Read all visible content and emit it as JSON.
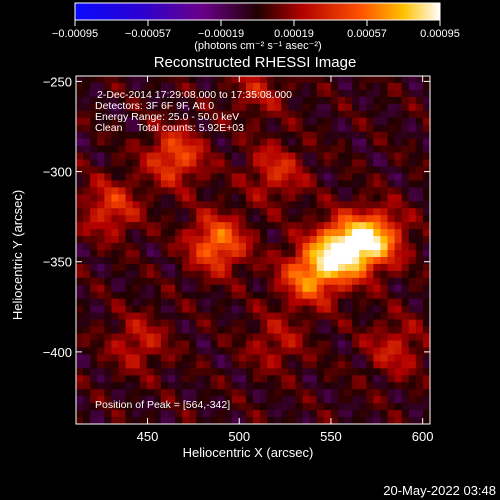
{
  "chart_data": {
    "type": "heatmap",
    "title": "Reconstructed RHESSI Image",
    "xlabel": "Heliocentric X (arcsec)",
    "ylabel": "Heliocentric Y (arcsec)",
    "xlim": [
      411,
      604
    ],
    "ylim": [
      -440,
      -247
    ],
    "x_ticks": [
      450,
      500,
      550,
      600
    ],
    "y_ticks": [
      -250,
      -300,
      -350,
      -400
    ],
    "colorbar": {
      "ticks": [
        "-0.00095",
        "-0.00057",
        "-0.00019",
        "0.00019",
        "0.00057",
        "0.00095"
      ],
      "range": [
        -0.00095,
        0.00095
      ],
      "unit_label": "(photons cm⁻² s⁻¹ asec⁻²)"
    },
    "info_lines": [
      "2-Dec-2014 17:29:08.000 to 17:35:08.000",
      "Detectors: 3F 6F 9F, Att 0",
      "Energy Range: 25.0 - 50.0 keV",
      "Clean     Total counts: 5.92E+03"
    ],
    "peak_label": "Position of Peak = [564,-342]",
    "peak": [
      564,
      -342
    ],
    "sources": [
      {
        "x": 556,
        "y": -344,
        "intensity": 0.00095
      },
      {
        "x": 574,
        "y": -337,
        "intensity": 0.0007
      },
      {
        "x": 538,
        "y": -358,
        "intensity": 0.0006
      },
      {
        "x": 488,
        "y": -340,
        "intensity": 0.0006
      },
      {
        "x": 465,
        "y": -292,
        "intensity": 0.0005
      },
      {
        "x": 430,
        "y": -320,
        "intensity": 0.0004
      },
      {
        "x": 520,
        "y": -300,
        "intensity": 0.00035
      },
      {
        "x": 585,
        "y": -398,
        "intensity": 0.0003
      },
      {
        "x": 520,
        "y": -395,
        "intensity": 0.00025
      },
      {
        "x": 445,
        "y": -395,
        "intensity": 0.0003
      },
      {
        "x": 510,
        "y": -255,
        "intensity": 0.00025
      }
    ]
  },
  "footer": {
    "timestamp": "20-May-2022 03:48"
  }
}
